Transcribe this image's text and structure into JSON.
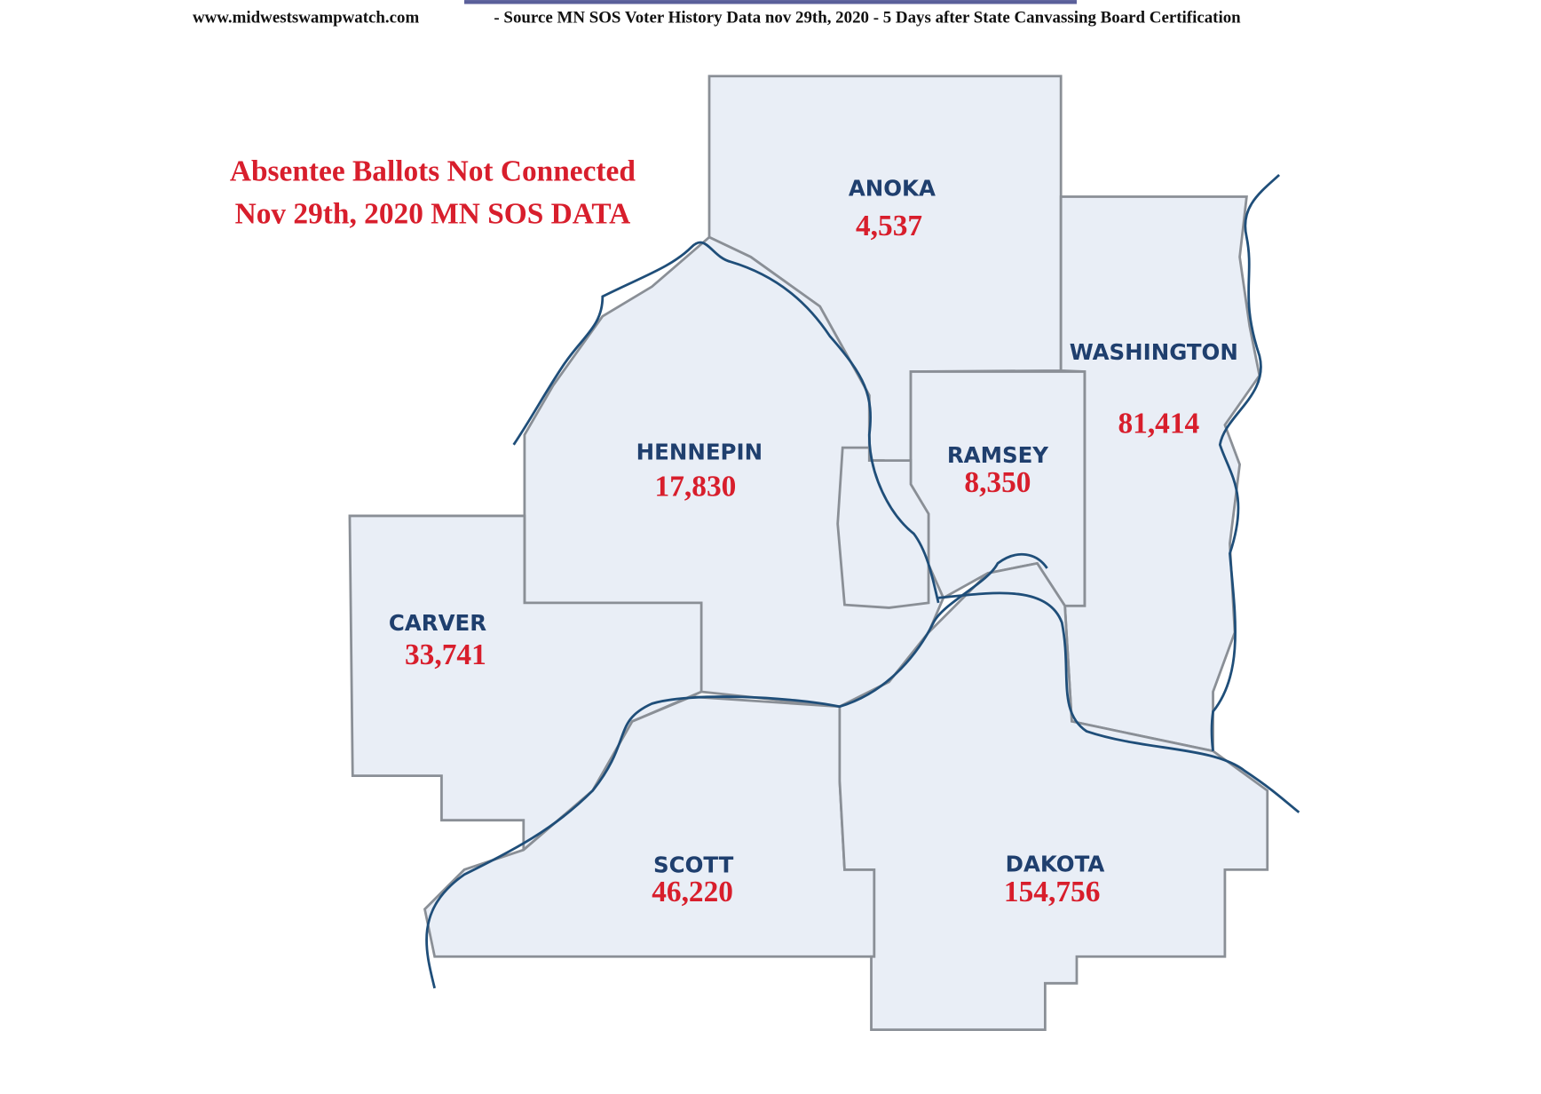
{
  "header": {
    "site": "www.midwestswampwatch.com",
    "source": "- Source MN SOS Voter History Data nov 29th, 2020 - 5 Days after State Canvassing Board Certification"
  },
  "title": {
    "line1": "Absentee Ballots Not Connected",
    "line2": "Nov 29th, 2020 MN SOS DATA"
  },
  "counties": [
    {
      "name": "ANOKA",
      "value": "4,537"
    },
    {
      "name": "WASHINGTON",
      "value": "81,414"
    },
    {
      "name": "RAMSEY",
      "value": "8,350"
    },
    {
      "name": "HENNEPIN",
      "value": "17,830"
    },
    {
      "name": "CARVER",
      "value": "33,741"
    },
    {
      "name": "SCOTT",
      "value": "46,220"
    },
    {
      "name": "DAKOTA",
      "value": "154,756"
    }
  ]
}
